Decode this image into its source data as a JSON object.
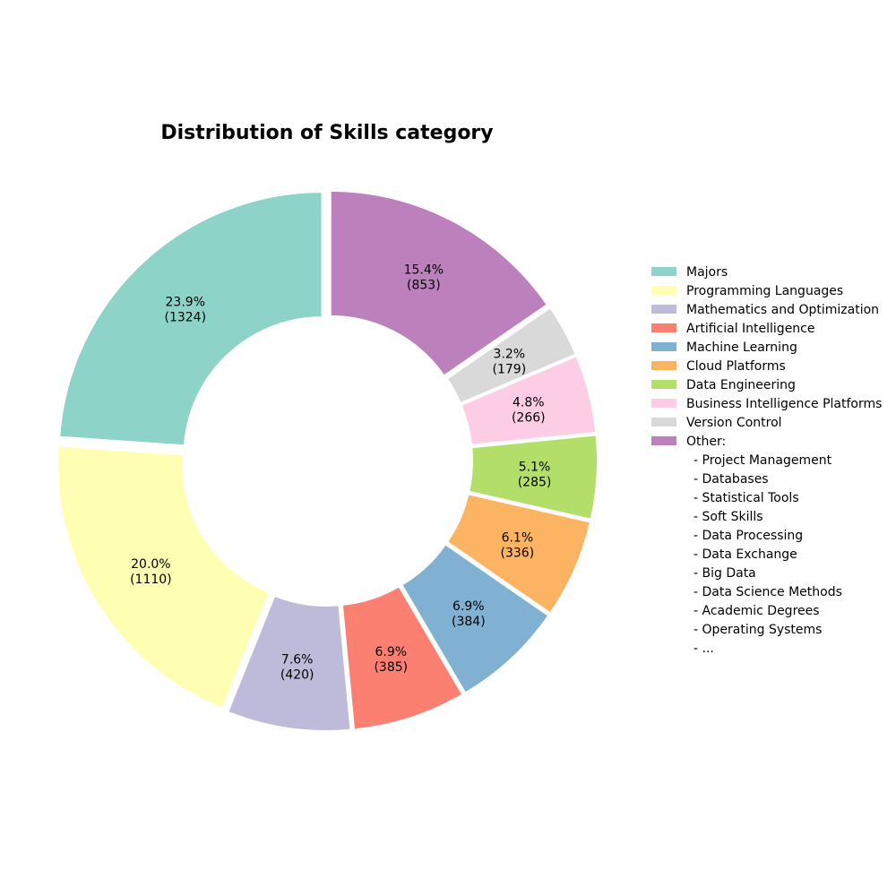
{
  "chart_data": {
    "type": "pie",
    "title": "Distribution of Skills category",
    "donut": true,
    "slices": [
      {
        "label": "Majors",
        "value": 1324,
        "pct_label": "23.9%",
        "count_label": "(1324)",
        "color": "#8dd3c7"
      },
      {
        "label": "Programming Languages",
        "value": 1110,
        "pct_label": "20.0%",
        "count_label": "(1110)",
        "color": "#ffffb3"
      },
      {
        "label": "Mathematics and Optimization",
        "value": 420,
        "pct_label": "7.6%",
        "count_label": "(420)",
        "color": "#bebada"
      },
      {
        "label": "Artificial Intelligence",
        "value": 385,
        "pct_label": "6.9%",
        "count_label": "(385)",
        "color": "#fb8072"
      },
      {
        "label": "Machine Learning",
        "value": 384,
        "pct_label": "6.9%",
        "count_label": "(384)",
        "color": "#80b1d3"
      },
      {
        "label": "Cloud Platforms",
        "value": 336,
        "pct_label": "6.1%",
        "count_label": "(336)",
        "color": "#fdb462"
      },
      {
        "label": "Data Engineering",
        "value": 285,
        "pct_label": "5.1%",
        "count_label": "(285)",
        "color": "#b3de69"
      },
      {
        "label": "Business Intelligence Platforms",
        "value": 266,
        "pct_label": "4.8%",
        "count_label": "(266)",
        "color": "#fccde5"
      },
      {
        "label": "Version Control",
        "value": 179,
        "pct_label": "3.2%",
        "count_label": "(179)",
        "color": "#d9d9d9"
      },
      {
        "label": "Other:",
        "value": 853,
        "pct_label": "15.4%",
        "count_label": "(853)",
        "color": "#bc80bd"
      }
    ],
    "other_items": [
      "  - Project Management",
      "  - Databases",
      "  - Statistical Tools",
      "  - Soft Skills",
      "  - Data Processing",
      "  - Data Exchange",
      "  - Big Data",
      "  - Data Science Methods",
      "  - Academic Degrees",
      "  - Operating Systems",
      "  - ..."
    ],
    "legend_position": "right"
  }
}
